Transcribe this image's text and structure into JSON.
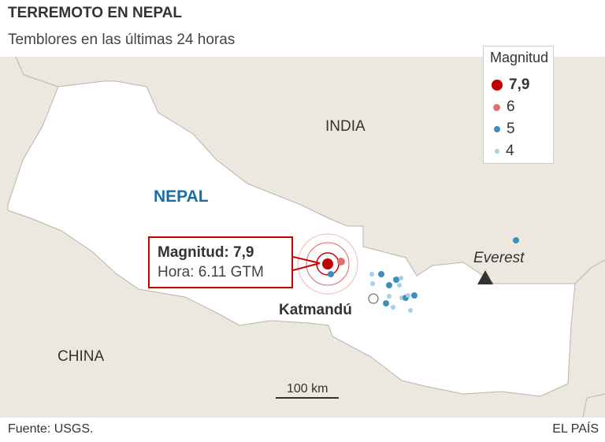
{
  "header": {
    "title": "TERREMOTO EN NEPAL",
    "subtitle": "Temblores en las últimas 24 horas"
  },
  "legend": {
    "title": "Magnitud",
    "items": [
      {
        "label": "7,9",
        "color": "#c00000"
      },
      {
        "label": "6",
        "color": "#e07070"
      },
      {
        "label": "5",
        "color": "#3a8fc0"
      },
      {
        "label": "4",
        "color": "#a8cde4"
      }
    ]
  },
  "labels": {
    "india": "INDIA",
    "nepal": "NEPAL",
    "china": "CHINA",
    "katmandu": "Katmandú",
    "everest": "Everest",
    "scale": "100 km"
  },
  "callout": {
    "magnitude": "Magnitud: 7,9",
    "time": "Hora: 6.11 GTM"
  },
  "footer": {
    "source": "Fuente: USGS.",
    "brand": "EL PAÍS"
  },
  "colors": {
    "land": "#ece8df",
    "nepal": "#ffffff",
    "border": "#b8b4aa",
    "accent": "#c00000",
    "nepal_label": "#1a6ea8"
  }
}
